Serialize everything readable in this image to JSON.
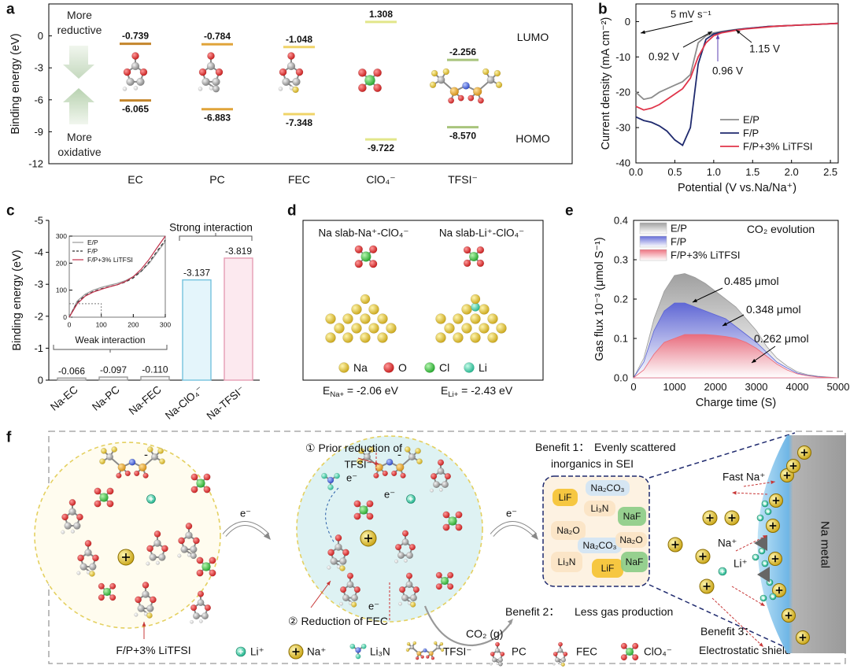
{
  "panels": [
    "a",
    "b",
    "c",
    "d",
    "e",
    "f"
  ],
  "chart_data": [
    {
      "type": "level",
      "ylabel": "Binding energy (eV)",
      "categories": [
        "EC",
        "PC",
        "FEC",
        "ClO₄⁻",
        "TFSI⁻"
      ],
      "colors": [
        "#c4862c",
        "#e0a43a",
        "#f0d468",
        "#e2e68a",
        "#a8c47c"
      ],
      "ylim": [
        -12,
        3
      ],
      "yticks": [
        0,
        -3,
        -6,
        -9,
        -12
      ],
      "series": [
        {
          "name": "LUMO",
          "values": [
            -0.739,
            -0.784,
            -1.048,
            1.308,
            -2.256
          ]
        },
        {
          "name": "HOMO",
          "values": [
            -6.065,
            -6.883,
            -7.348,
            -9.722,
            -8.57
          ],
          "value_labels": [
            "-6.065",
            "-6.883",
            "-7.348",
            "-9.722",
            "-8.570"
          ]
        }
      ],
      "annotations": [
        "More reductive",
        "More oxidative"
      ]
    },
    {
      "type": "line",
      "xlabel": "Potential (V vs.Na/Na⁺)",
      "ylabel": "Current density (mA cm⁻²)",
      "x": [
        0,
        0.1,
        0.2,
        0.3,
        0.4,
        0.5,
        0.6,
        0.7,
        0.8,
        0.9,
        1,
        1.1,
        1.2,
        1.3,
        1.4,
        1.5,
        1.6,
        1.7,
        1.8,
        1.9,
        2,
        2.1,
        2.2,
        2.3,
        2.4,
        2.5,
        2.6
      ],
      "xlim": [
        0,
        2.6
      ],
      "xticks": [
        {
          "value": 0,
          "label": "0.0"
        },
        0.5,
        {
          "value": 1,
          "label": "1.0"
        },
        1.5,
        {
          "value": 2,
          "label": "2.0"
        },
        2.5
      ],
      "ylim": [
        -40,
        5
      ],
      "yticks": [
        0,
        -10,
        -20,
        -30,
        -40
      ],
      "series": [
        {
          "name": "E/P",
          "color": "#8c8c8c",
          "values": [
            -20,
            -22,
            -21.5,
            -20,
            -19,
            -18,
            -17,
            -15,
            -6,
            -4,
            -3.2,
            -2.8,
            -2.5,
            -2.2,
            -2,
            -1.8,
            -1.6,
            -1.4,
            -1.3,
            -1.2,
            -1.1,
            -1,
            -0.9,
            -0.8,
            -0.7,
            -0.6,
            -0.5
          ]
        },
        {
          "name": "F/P",
          "color": "#1f2a6e",
          "values": [
            -27,
            -28,
            -28.5,
            -29.5,
            -31,
            -33.5,
            -35,
            -30,
            -12,
            -5,
            -3.5,
            -3,
            -2.6,
            -2.3,
            -2,
            -1.8,
            -1.6,
            -1.4,
            -1.3,
            -1.2,
            -1.1,
            -1,
            -0.9,
            -0.8,
            -0.7,
            -0.6,
            -0.5
          ]
        },
        {
          "name": "F/P+3% LiTFSI",
          "color": "#e0354a",
          "values": [
            -24,
            -25,
            -24.5,
            -23.5,
            -22,
            -20.5,
            -19,
            -16,
            -10,
            -6,
            -4,
            -3.2,
            -2.8,
            -2.4,
            -2.1,
            -1.9,
            -1.7,
            -1.5,
            -1.3,
            -1.2,
            -1.1,
            -1,
            -0.9,
            -0.8,
            -0.7,
            -0.6,
            -0.5
          ]
        }
      ],
      "legend": "lower right",
      "annotations": [
        "5 mV s⁻¹",
        "0.92 V",
        "0.96 V",
        "1.15 V"
      ]
    },
    {
      "type": "bar",
      "ylabel": "Binding energy (eV)",
      "categories": [
        "Na-EC",
        "Na-PC",
        "Na-FEC",
        "Na-ClO₄⁻",
        "Na-TFSI⁻"
      ],
      "values": [
        -0.066,
        -0.097,
        -0.11,
        -3.137,
        -3.819
      ],
      "value_labels": [
        "-0.066",
        "-0.097",
        "-0.110",
        "-3.137",
        "-3.819"
      ],
      "colors": [
        "#f4f4f4",
        "#f4f4f4",
        "#f4f4f4",
        "#e4f5fb",
        "#fce9ef"
      ],
      "edge_colors": [
        "#9a9a9a",
        "#9a9a9a",
        "#9a9a9a",
        "#74c2de",
        "#e69db4"
      ],
      "ylim": [
        0,
        -5
      ],
      "yticks": [
        0,
        -1,
        -2,
        -3,
        -4,
        -5
      ],
      "annotations": [
        "Strong interaction",
        "Weak interaction"
      ]
    },
    {
      "type": "line",
      "x": [
        0,
        25,
        50,
        75,
        100,
        125,
        150,
        175,
        200,
        225,
        250,
        275,
        300
      ],
      "xlim": [
        0,
        300
      ],
      "xticks": [
        0,
        100,
        200,
        300
      ],
      "ylim": [
        0,
        300
      ],
      "yticks": [
        0,
        100,
        200,
        300
      ],
      "series": [
        {
          "name": "E/P",
          "color": "#9a9a9a",
          "linestyle": "solid",
          "values": [
            0,
            60,
            85,
            100,
            110,
            118,
            125,
            135,
            150,
            170,
            200,
            240,
            280
          ]
        },
        {
          "name": "F/P",
          "color": "#333333",
          "linestyle": "dashed",
          "values": [
            0,
            55,
            80,
            95,
            105,
            113,
            120,
            130,
            145,
            170,
            205,
            245,
            285
          ]
        },
        {
          "name": "F/P+3% LiTFSI",
          "color": "#c0304a",
          "linestyle": "solid",
          "values": [
            0,
            50,
            78,
            93,
            103,
            112,
            120,
            132,
            150,
            178,
            215,
            258,
            300
          ]
        }
      ],
      "legend": "upper left"
    },
    {
      "type": "area",
      "xlabel": "Charge time (S)",
      "ylabel": "Gas flux 10⁻³ (μmol S⁻¹)",
      "x": [
        0,
        250,
        500,
        750,
        1000,
        1250,
        1500,
        1750,
        2000,
        2250,
        2500,
        2750,
        3000,
        3250,
        3500,
        3750,
        4000,
        4250,
        4500,
        4750,
        5000
      ],
      "xlim": [
        0,
        5000
      ],
      "xticks": [
        0,
        1000,
        2000,
        3000,
        4000,
        5000
      ],
      "ylim": [
        0,
        0.4
      ],
      "yticks": [
        {
          "value": 0,
          "label": "0.0"
        },
        0.1,
        0.2,
        0.3,
        0.4
      ],
      "series": [
        {
          "name": "E/P",
          "color": "#9a9a9a",
          "values": [
            0,
            0.05,
            0.15,
            0.22,
            0.26,
            0.265,
            0.255,
            0.24,
            0.22,
            0.2,
            0.18,
            0.15,
            0.12,
            0.08,
            0.05,
            0.03,
            0.015,
            0.008,
            0.004,
            0.002,
            0
          ]
        },
        {
          "name": "F/P",
          "color": "#5b63d6",
          "values": [
            0,
            0.04,
            0.12,
            0.17,
            0.19,
            0.19,
            0.18,
            0.17,
            0.16,
            0.15,
            0.13,
            0.11,
            0.09,
            0.065,
            0.04,
            0.025,
            0.012,
            0.006,
            0.003,
            0.001,
            0
          ]
        },
        {
          "name": "F/P+3% LiTFSI",
          "color": "#ec6a78",
          "values": [
            0,
            0.02,
            0.06,
            0.09,
            0.1,
            0.11,
            0.11,
            0.11,
            0.108,
            0.105,
            0.1,
            0.09,
            0.075,
            0.055,
            0.035,
            0.02,
            0.01,
            0.005,
            0.002,
            0.001,
            0
          ]
        }
      ],
      "legend": "upper left",
      "annotations": [
        "CO₂ evolution",
        "0.485 μmol",
        "0.348 μmol",
        "0.262 μmol"
      ]
    }
  ],
  "diagrams": {
    "d": {
      "left_title": "Na slab-Na⁺-ClO₄⁻",
      "right_title": "Na slab-Li⁺-ClO₄⁻",
      "legend": [
        "Na",
        "O",
        "Cl",
        "Li"
      ],
      "energies": [
        {
          "symbol": "E",
          "subscript": "Na+",
          "text": " = -2.06 eV"
        },
        {
          "symbol": "E",
          "subscript": "Li+",
          "text": " = -2.43 eV"
        }
      ]
    },
    "f": {
      "step1": [
        "① Prior reduction of",
        "TFSI⁻"
      ],
      "step2": "② Reduction of FEC",
      "electron": "e⁻",
      "charge": "-",
      "gas": "CO₂ (g)",
      "electrolyte": "F/P+3% LiTFSI",
      "sei": [
        "LiF",
        "Na₂CO₃",
        "Li₃N",
        "NaF",
        "Na₂O",
        "Na₂CO₃",
        "Na₂O",
        "Li₃N",
        "LiF",
        "NaF"
      ],
      "benefits": [
        {
          "label": "Benefit 1：",
          "text": [
            "Evenly scattered",
            "inorganics in SEI"
          ]
        },
        {
          "label": "Benefit 2：",
          "text": [
            "Less gas production"
          ]
        },
        {
          "label": "Benefit 3：",
          "text": [
            "Electrostatic shield"
          ]
        }
      ],
      "ions": [
        "Fast Na⁺",
        "Na⁺",
        "Li⁺"
      ],
      "metal": "Na metal",
      "legend": [
        "Li⁺",
        "Na⁺",
        "Li₃N",
        "TFSI⁻",
        "PC",
        "FEC",
        "ClO₄⁻"
      ]
    }
  }
}
